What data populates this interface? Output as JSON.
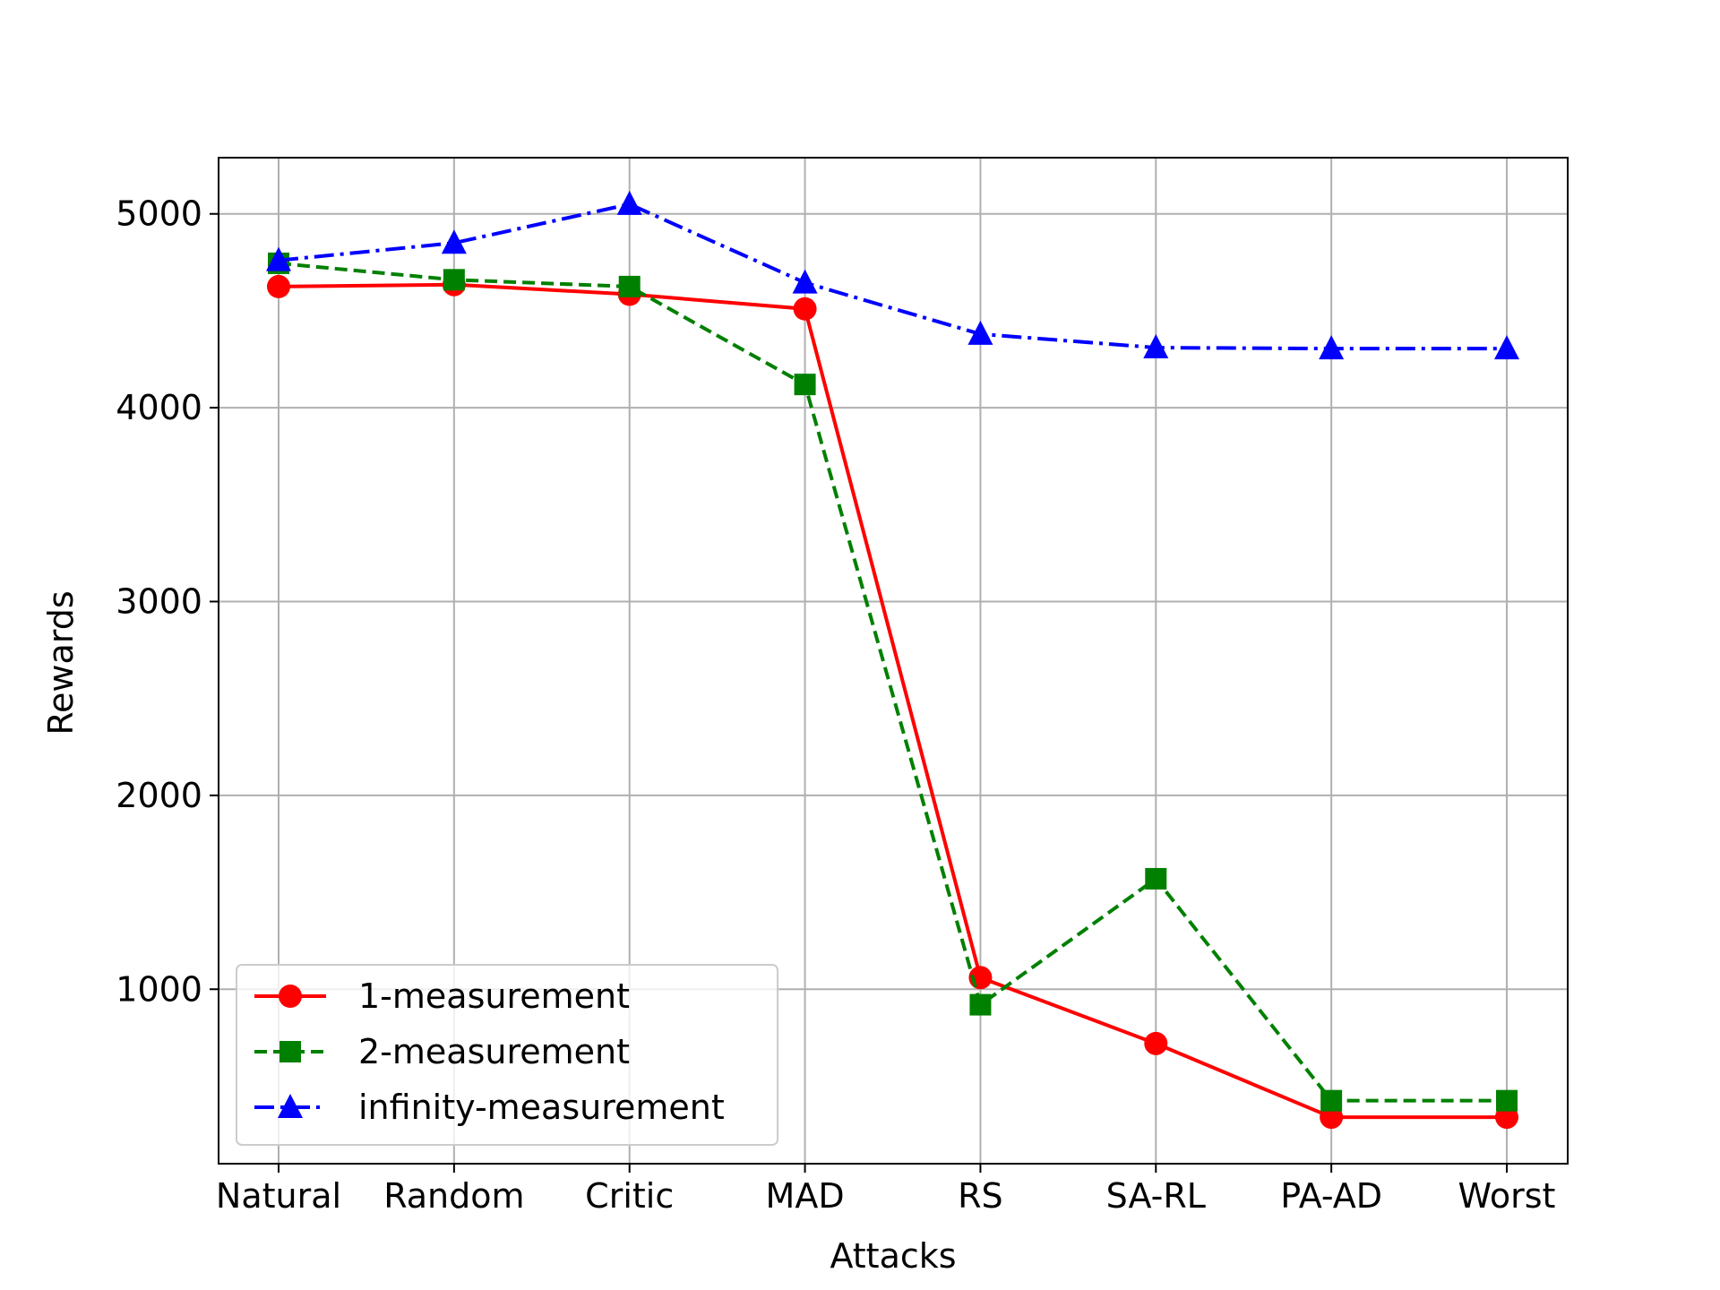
{
  "chart_data": {
    "type": "line",
    "xlabel": "Attacks",
    "ylabel": "Rewards",
    "categories": [
      "Natural",
      "Random",
      "Critic",
      "MAD",
      "RS",
      "SA-RL",
      "PA-AD",
      "Worst"
    ],
    "yticks": [
      1000,
      2000,
      3000,
      4000,
      5000
    ],
    "ylim": [
      100,
      5290
    ],
    "grid": true,
    "legend_position": "lower-left",
    "series": [
      {
        "name": "1-measurement",
        "color": "#ff0000",
        "line_style": "solid",
        "marker": "circle",
        "values": [
          4625,
          4635,
          4585,
          4510,
          1060,
          720,
          340,
          340
        ]
      },
      {
        "name": "2-measurement",
        "color": "#008000",
        "line_style": "dashed",
        "marker": "square",
        "values": [
          4745,
          4660,
          4625,
          4120,
          920,
          1570,
          425,
          425
        ]
      },
      {
        "name": "infinity-measurement",
        "color": "#0000ff",
        "line_style": "dashdot",
        "marker": "triangle",
        "values": [
          4760,
          4850,
          5050,
          4645,
          4380,
          4310,
          4305,
          4305
        ]
      }
    ]
  }
}
